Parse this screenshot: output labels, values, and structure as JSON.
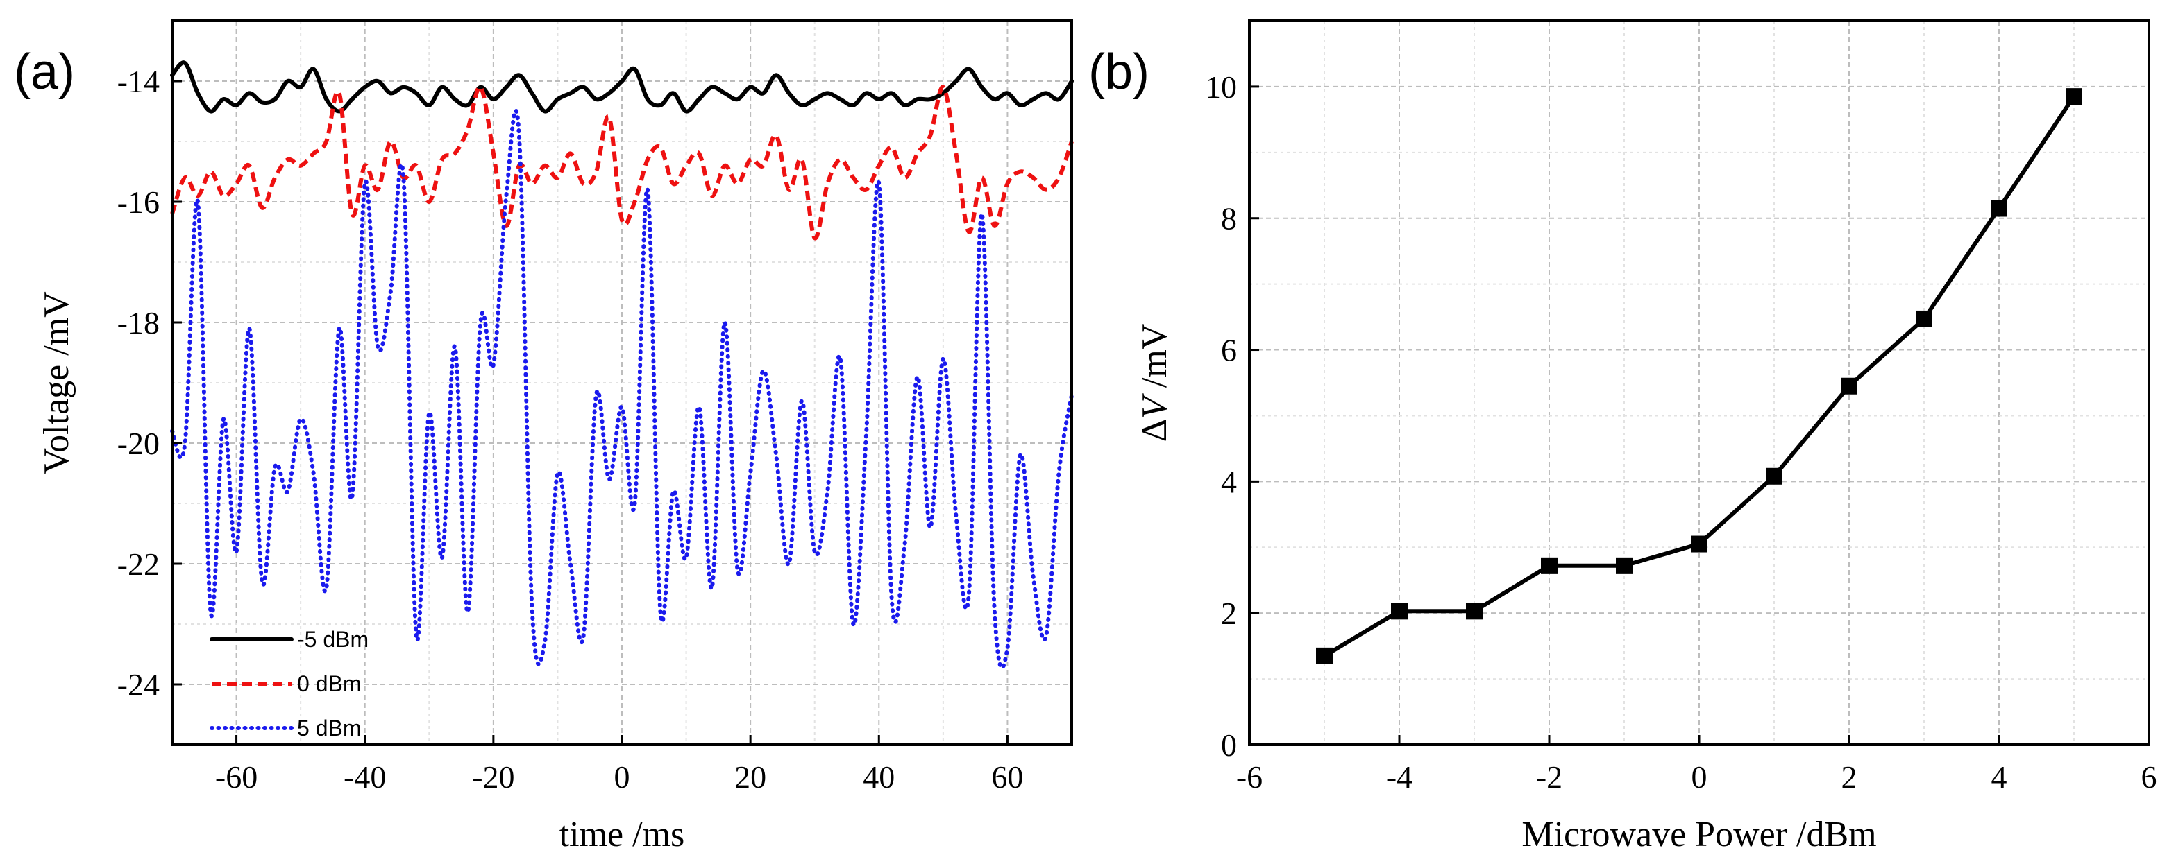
{
  "chart_data": [
    {
      "panel": "(a)",
      "type": "line",
      "xlabel": "time /ms",
      "ylabel": "Voltage /mV",
      "xlim": [
        -70,
        70
      ],
      "ylim": [
        -25,
        -13
      ],
      "xticks": [
        -60,
        -40,
        -20,
        0,
        20,
        40,
        60
      ],
      "xtick_labels": [
        "-60",
        "-40",
        "-20",
        "0",
        "20",
        "40",
        "60"
      ],
      "yticks": [
        -14,
        -16,
        -18,
        -20,
        -22,
        -24
      ],
      "ytick_labels": [
        "-14",
        "-16",
        "-18",
        "-20",
        "-22",
        "-24"
      ],
      "grid": true,
      "legend_position": "bottom-left",
      "series": [
        {
          "name": "-5 dBm",
          "color": "#000000",
          "style": "solid",
          "x": [
            -70,
            -68,
            -66,
            -64,
            -62,
            -60,
            -58,
            -56,
            -54,
            -52,
            -50,
            -48,
            -46,
            -44,
            -42,
            -40,
            -38,
            -36,
            -34,
            -32,
            -30,
            -28,
            -26,
            -24,
            -22,
            -20,
            -18,
            -16,
            -14,
            -12,
            -10,
            -8,
            -6,
            -4,
            -2,
            0,
            2,
            4,
            6,
            8,
            10,
            12,
            14,
            16,
            18,
            20,
            22,
            24,
            26,
            28,
            30,
            32,
            34,
            36,
            38,
            40,
            42,
            44,
            46,
            48,
            50,
            52,
            54,
            56,
            58,
            60,
            62,
            64,
            66,
            68,
            70
          ],
          "values": [
            -13.9,
            -13.7,
            -14.2,
            -14.5,
            -14.3,
            -14.4,
            -14.2,
            -14.35,
            -14.3,
            -14.0,
            -14.1,
            -13.8,
            -14.3,
            -14.5,
            -14.3,
            -14.1,
            -14.0,
            -14.2,
            -14.1,
            -14.2,
            -14.4,
            -14.1,
            -14.3,
            -14.4,
            -14.1,
            -14.3,
            -14.1,
            -13.9,
            -14.2,
            -14.5,
            -14.3,
            -14.2,
            -14.1,
            -14.3,
            -14.2,
            -14.0,
            -13.8,
            -14.3,
            -14.4,
            -14.2,
            -14.5,
            -14.3,
            -14.1,
            -14.2,
            -14.3,
            -14.1,
            -14.2,
            -13.9,
            -14.2,
            -14.4,
            -14.3,
            -14.2,
            -14.3,
            -14.4,
            -14.2,
            -14.3,
            -14.2,
            -14.4,
            -14.3,
            -14.3,
            -14.2,
            -14.0,
            -13.8,
            -14.1,
            -14.3,
            -14.2,
            -14.4,
            -14.3,
            -14.2,
            -14.3,
            -14.0
          ]
        },
        {
          "name": "0 dBm",
          "color": "#ee1111",
          "style": "dashed",
          "x": [
            -70,
            -68,
            -66,
            -64,
            -62,
            -60,
            -58,
            -56,
            -54,
            -52,
            -50,
            -48,
            -46,
            -44,
            -42,
            -40,
            -38,
            -36,
            -34,
            -32,
            -30,
            -28,
            -26,
            -24,
            -22,
            -20,
            -18,
            -16,
            -14,
            -12,
            -10,
            -8,
            -6,
            -4,
            -2,
            0,
            2,
            4,
            6,
            8,
            10,
            12,
            14,
            16,
            18,
            20,
            22,
            24,
            26,
            28,
            30,
            32,
            34,
            36,
            38,
            40,
            42,
            44,
            46,
            48,
            50,
            52,
            54,
            56,
            58,
            60,
            62,
            64,
            66,
            68,
            70
          ],
          "values": [
            -16.2,
            -15.6,
            -15.9,
            -15.5,
            -15.9,
            -15.7,
            -15.4,
            -16.1,
            -15.6,
            -15.3,
            -15.4,
            -15.2,
            -15.0,
            -14.2,
            -16.2,
            -15.4,
            -15.8,
            -15.0,
            -15.6,
            -15.4,
            -16.0,
            -15.3,
            -15.2,
            -14.8,
            -14.1,
            -15.2,
            -16.4,
            -15.4,
            -15.7,
            -15.4,
            -15.6,
            -15.2,
            -15.7,
            -15.5,
            -14.6,
            -16.3,
            -16.0,
            -15.3,
            -15.1,
            -15.7,
            -15.4,
            -15.2,
            -15.9,
            -15.4,
            -15.7,
            -15.3,
            -15.4,
            -14.9,
            -15.8,
            -15.3,
            -16.6,
            -15.7,
            -15.3,
            -15.6,
            -15.8,
            -15.4,
            -15.1,
            -15.6,
            -15.2,
            -14.9,
            -14.1,
            -15.2,
            -16.5,
            -15.6,
            -16.4,
            -15.7,
            -15.5,
            -15.6,
            -15.8,
            -15.6,
            -15.0
          ]
        },
        {
          "name": "5 dBm",
          "color": "#1a1aee",
          "style": "dotted",
          "x": [
            -70,
            -68,
            -66,
            -64,
            -62,
            -60,
            -58,
            -56,
            -54,
            -52,
            -50,
            -48,
            -46,
            -44,
            -42,
            -40,
            -38,
            -36,
            -34,
            -32,
            -30,
            -28,
            -26,
            -24,
            -22,
            -20,
            -18,
            -16,
            -14,
            -12,
            -10,
            -8,
            -6,
            -4,
            -2,
            0,
            2,
            4,
            6,
            8,
            10,
            12,
            14,
            16,
            18,
            20,
            22,
            24,
            26,
            28,
            30,
            32,
            34,
            36,
            38,
            40,
            42,
            44,
            46,
            48,
            50,
            52,
            54,
            56,
            58,
            60,
            62,
            64,
            66,
            68,
            70
          ],
          "values": [
            -19.8,
            -20.0,
            -16.0,
            -22.8,
            -19.6,
            -21.8,
            -18.1,
            -22.3,
            -20.4,
            -20.8,
            -19.6,
            -20.5,
            -22.4,
            -18.1,
            -20.9,
            -15.7,
            -18.4,
            -17.5,
            -15.6,
            -23.2,
            -19.5,
            -21.9,
            -18.4,
            -22.8,
            -18.0,
            -18.7,
            -15.9,
            -14.9,
            -22.7,
            -23.3,
            -20.5,
            -22.0,
            -23.2,
            -19.2,
            -20.6,
            -19.4,
            -21.0,
            -15.8,
            -22.8,
            -20.8,
            -21.9,
            -19.4,
            -22.4,
            -18.0,
            -22.1,
            -20.5,
            -18.8,
            -20.2,
            -22.0,
            -19.3,
            -21.8,
            -20.8,
            -18.6,
            -23.0,
            -19.9,
            -15.7,
            -22.6,
            -21.7,
            -18.9,
            -21.4,
            -18.6,
            -21.2,
            -22.5,
            -16.2,
            -22.8,
            -23.4,
            -20.2,
            -22.2,
            -23.2,
            -20.5,
            -19.2
          ]
        }
      ]
    },
    {
      "panel": "(b)",
      "type": "line",
      "marker": "square",
      "xlabel": "Microwave Power /dBm",
      "ylabel_prefix": "Δ",
      "ylabel_var": "V",
      "ylabel_suffix": " /mV",
      "xlim": [
        -6,
        6
      ],
      "ylim": [
        0,
        11
      ],
      "xticks": [
        -6,
        -4,
        -2,
        0,
        2,
        4,
        6
      ],
      "xtick_labels": [
        "-6",
        "-4",
        "-2",
        "0",
        "2",
        "4",
        "6"
      ],
      "yticks": [
        0,
        2,
        4,
        6,
        8,
        10
      ],
      "ytick_labels": [
        "0",
        "2",
        "4",
        "6",
        "8",
        "10"
      ],
      "grid": true,
      "series": [
        {
          "name": "ΔV",
          "color": "#000000",
          "x": [
            -5,
            -4,
            -3,
            -2,
            -1,
            0,
            1,
            2,
            3,
            4,
            5
          ],
          "values": [
            1.35,
            2.03,
            2.03,
            2.72,
            2.72,
            3.05,
            4.08,
            5.45,
            6.47,
            8.15,
            9.85
          ]
        }
      ]
    }
  ]
}
